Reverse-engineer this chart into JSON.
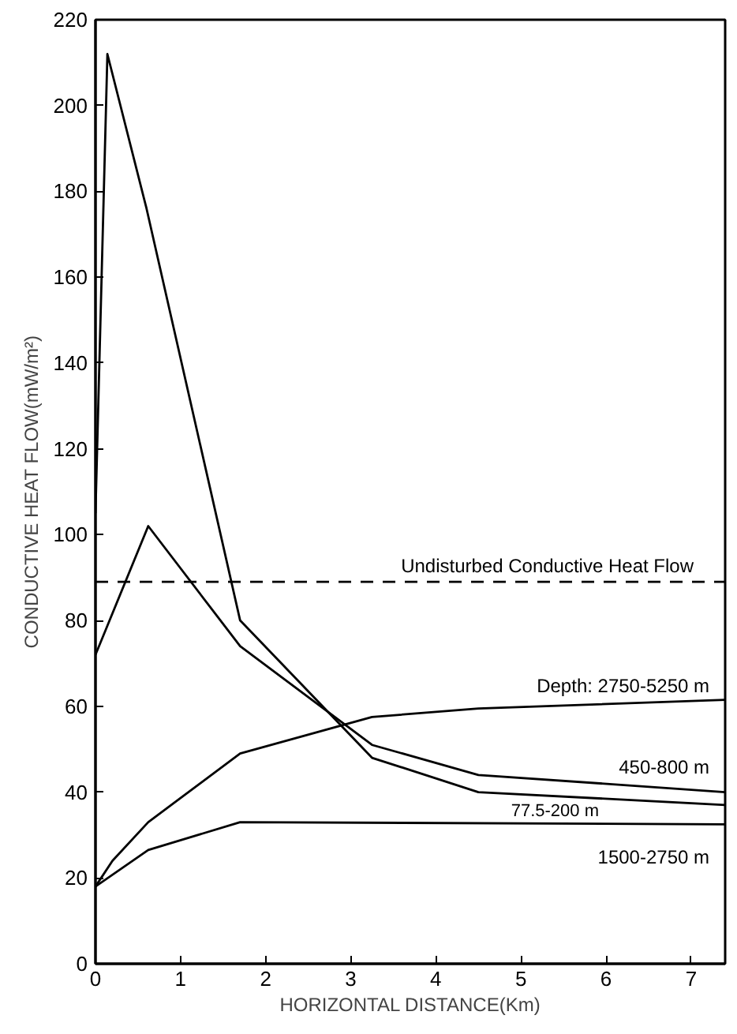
{
  "chart_data": {
    "type": "line",
    "xlabel": "HORIZONTAL DISTANCE(Km)",
    "ylabel": "CONDUCTIVE HEAT FLOW(mW/m²)",
    "xlim": [
      0,
      7.4
    ],
    "ylim": [
      0,
      220
    ],
    "xticks": [
      0,
      1,
      2,
      3,
      4,
      5,
      6,
      7
    ],
    "yticks": [
      0,
      20,
      40,
      60,
      80,
      100,
      120,
      140,
      160,
      180,
      200,
      220
    ],
    "grid": false,
    "legend": false,
    "marker": "none",
    "line_style": "solid",
    "series": [
      {
        "name": "Depth: 2750-5250 m",
        "color": "#000000",
        "x": [
          0,
          0.2,
          0.62,
          1.7,
          3.25,
          4.5,
          7.4
        ],
        "values": [
          18,
          24,
          33,
          49,
          57.5,
          59.5,
          61.5
        ]
      },
      {
        "name": "450-800 m",
        "color": "#000000",
        "x": [
          0,
          0.62,
          1.7,
          3.25,
          4.5,
          7.4
        ],
        "values": [
          72,
          102,
          74,
          51,
          44,
          40
        ]
      },
      {
        "name": "77.5-200 m",
        "color": "#000000",
        "x": [
          0,
          0.14,
          0.6,
          1.7,
          3.25,
          4.5,
          7.4
        ],
        "values": [
          105,
          212,
          176,
          80,
          48,
          40,
          37
        ]
      },
      {
        "name": "1500-2750 m",
        "color": "#000000",
        "x": [
          0,
          0.62,
          1.7,
          7.4
        ],
        "values": [
          18,
          26.5,
          33,
          32.5
        ]
      }
    ],
    "ref_lines": [
      {
        "axis": "y",
        "value": 89,
        "label": "Undisturbed Conductive Heat Flow",
        "color": "#000000",
        "line_style": "dashed"
      }
    ]
  }
}
